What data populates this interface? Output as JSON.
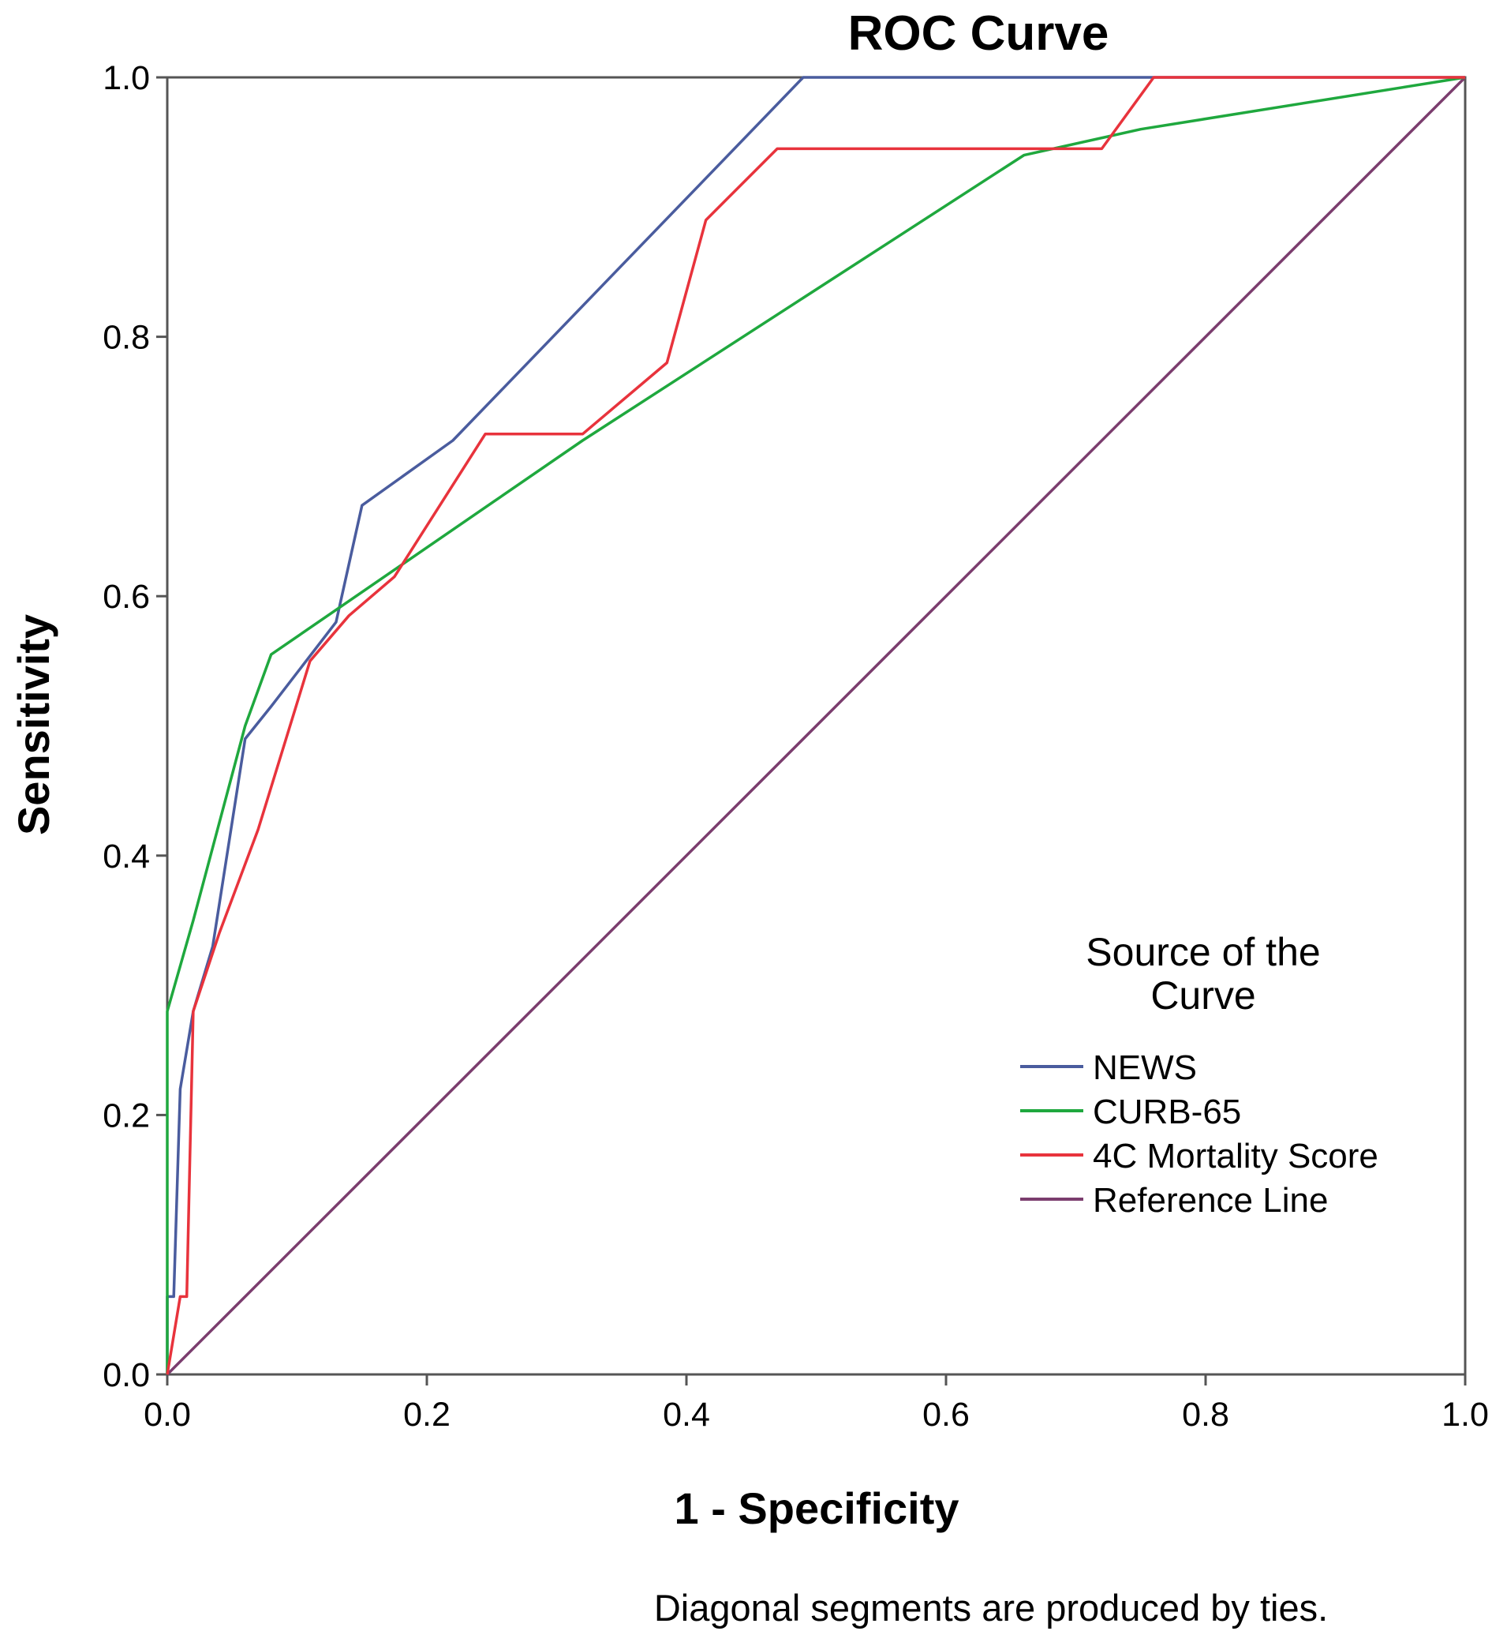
{
  "chart_data": {
    "type": "line",
    "title": "ROC Curve",
    "xlabel": "1 - Specificity",
    "ylabel": "Sensitivity",
    "xlim": [
      0,
      1
    ],
    "ylim": [
      0,
      1
    ],
    "xticks": [
      "0.0",
      "0.2",
      "0.4",
      "0.6",
      "0.8",
      "1.0"
    ],
    "yticks": [
      "0.0",
      "0.2",
      "0.4",
      "0.6",
      "0.8",
      "1.0"
    ],
    "legend_title_lines": [
      "Source of the",
      "Curve"
    ],
    "legend_position": "bottom-right",
    "footnote": "Diagonal segments are produced by ties.",
    "series": [
      {
        "name": "NEWS",
        "color": "#4a5c9e",
        "points": [
          [
            0,
            0
          ],
          [
            0,
            0.06
          ],
          [
            0.005,
            0.06
          ],
          [
            0.01,
            0.22
          ],
          [
            0.02,
            0.28
          ],
          [
            0.035,
            0.33
          ],
          [
            0.06,
            0.49
          ],
          [
            0.08,
            0.515
          ],
          [
            0.13,
            0.58
          ],
          [
            0.15,
            0.67
          ],
          [
            0.22,
            0.72
          ],
          [
            0.49,
            1.0
          ],
          [
            1.0,
            1.0
          ]
        ]
      },
      {
        "name": "CURB-65",
        "color": "#1fa83e",
        "points": [
          [
            0,
            0
          ],
          [
            0,
            0.28
          ],
          [
            0.02,
            0.35
          ],
          [
            0.06,
            0.5
          ],
          [
            0.08,
            0.555
          ],
          [
            0.32,
            0.72
          ],
          [
            0.66,
            0.94
          ],
          [
            0.75,
            0.96
          ],
          [
            1.0,
            1.0
          ]
        ]
      },
      {
        "name": "4C Mortality Score",
        "color": "#e8333c",
        "points": [
          [
            0,
            0
          ],
          [
            0.01,
            0.06
          ],
          [
            0.015,
            0.06
          ],
          [
            0.02,
            0.28
          ],
          [
            0.04,
            0.34
          ],
          [
            0.07,
            0.42
          ],
          [
            0.11,
            0.55
          ],
          [
            0.14,
            0.585
          ],
          [
            0.175,
            0.615
          ],
          [
            0.245,
            0.725
          ],
          [
            0.32,
            0.725
          ],
          [
            0.385,
            0.78
          ],
          [
            0.415,
            0.89
          ],
          [
            0.47,
            0.945
          ],
          [
            0.72,
            0.945
          ],
          [
            0.76,
            1.0
          ],
          [
            1.0,
            1.0
          ]
        ]
      },
      {
        "name": "Reference Line",
        "color": "#7b3d6e",
        "points": [
          [
            0,
            0
          ],
          [
            1,
            1
          ]
        ]
      }
    ]
  }
}
